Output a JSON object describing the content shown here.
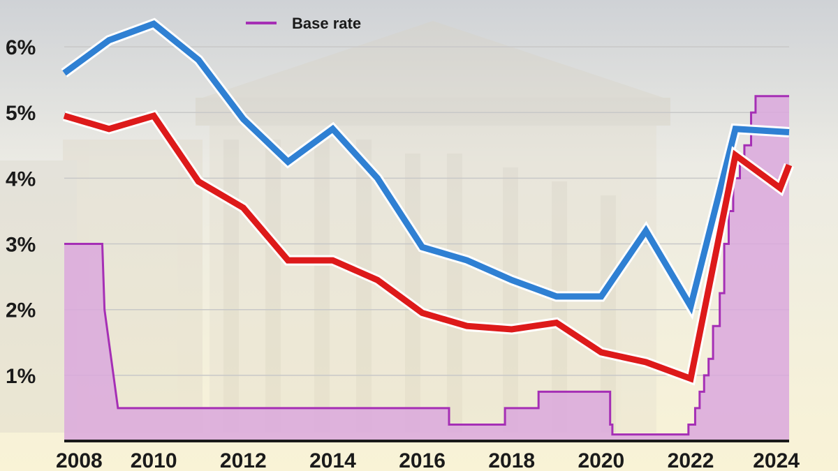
{
  "colors": {
    "base_rate_fill": "#dba8dd",
    "base_rate_line": "#a52fb5",
    "series_blue": "#2f80d3",
    "series_red": "#dd1a1a",
    "gridline": "#c8c8c8",
    "axis": "#1a1a1a"
  },
  "legend": {
    "label": "Base rate",
    "position": "top-center"
  },
  "chart_data": {
    "type": "line",
    "title": "",
    "xlabel": "",
    "ylabel": "",
    "xlim": [
      2008,
      2024.2
    ],
    "ylim": [
      0,
      6.5
    ],
    "grid": true,
    "x_ticks": [
      2008,
      2010,
      2012,
      2014,
      2016,
      2018,
      2020,
      2022,
      2024
    ],
    "x_tick_labels": [
      "2008",
      "2010",
      "2012",
      "2014",
      "2016",
      "2018",
      "2020",
      "2022",
      "2024"
    ],
    "y_ticks": [
      1,
      2,
      3,
      4,
      5,
      6
    ],
    "y_tick_labels": [
      "1%",
      "2%",
      "3%",
      "4%",
      "5%",
      "6%"
    ],
    "series": [
      {
        "name": "Base rate",
        "style": "step-area",
        "x": [
          2008,
          2008.85,
          2008.9,
          2009.0,
          2009.1,
          2009.2,
          2016.6,
          2016.6,
          2017.85,
          2017.85,
          2018.6,
          2018.6,
          2020.2,
          2020.2,
          2020.25,
          2020.25,
          2021.95,
          2021.95,
          2022.1,
          2022.1,
          2022.2,
          2022.2,
          2022.3,
          2022.3,
          2022.4,
          2022.4,
          2022.5,
          2022.5,
          2022.65,
          2022.65,
          2022.75,
          2022.75,
          2022.85,
          2022.85,
          2022.95,
          2022.95,
          2023.1,
          2023.1,
          2023.2,
          2023.2,
          2023.35,
          2023.35,
          2023.45,
          2023.45,
          2024.2
        ],
        "values": [
          3.0,
          3.0,
          2.0,
          1.5,
          1.0,
          0.5,
          0.5,
          0.25,
          0.25,
          0.5,
          0.5,
          0.75,
          0.75,
          0.25,
          0.25,
          0.1,
          0.1,
          0.25,
          0.25,
          0.5,
          0.5,
          0.75,
          0.75,
          1.0,
          1.0,
          1.25,
          1.25,
          1.75,
          1.75,
          2.25,
          2.25,
          3.0,
          3.0,
          3.5,
          3.5,
          4.0,
          4.0,
          4.25,
          4.25,
          4.5,
          4.5,
          5.0,
          5.0,
          5.25,
          5.25
        ]
      },
      {
        "name": "",
        "style": "line",
        "color_key": "series_blue",
        "x": [
          2008.0,
          2009.0,
          2010.0,
          2011.0,
          2012.0,
          2013.0,
          2014.0,
          2015.0,
          2016.0,
          2017.0,
          2018.0,
          2019.0,
          2020.0,
          2021.0,
          2022.0,
          2023.0,
          2024.2
        ],
        "values": [
          5.6,
          6.1,
          6.35,
          5.8,
          4.9,
          4.25,
          4.75,
          4.0,
          2.95,
          2.75,
          2.45,
          2.2,
          2.2,
          3.2,
          2.05,
          4.75,
          4.7
        ]
      },
      {
        "name": "",
        "style": "line",
        "color_key": "series_red",
        "x": [
          2008.0,
          2009.0,
          2010.0,
          2011.0,
          2012.0,
          2013.0,
          2014.0,
          2015.0,
          2016.0,
          2017.0,
          2018.0,
          2019.0,
          2020.0,
          2021.0,
          2022.0,
          2023.0,
          2024.0,
          2024.2
        ],
        "values": [
          4.95,
          4.75,
          4.95,
          3.95,
          3.55,
          2.75,
          2.75,
          2.45,
          1.95,
          1.75,
          1.7,
          1.8,
          1.35,
          1.2,
          0.95,
          4.35,
          3.85,
          4.2
        ]
      }
    ]
  }
}
